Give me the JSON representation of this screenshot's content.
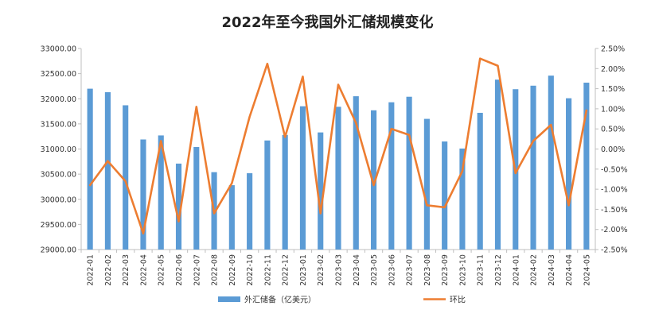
{
  "chart_data": {
    "type": "bar+line",
    "title": "2022年至今我国外汇储规模变化",
    "categories": [
      "2022-01",
      "2022-02",
      "2022-03",
      "2022-04",
      "2022-05",
      "2022-06",
      "2022-07",
      "2022-08",
      "2022-09",
      "2022-10",
      "2022-11",
      "2022-12",
      "2023-01",
      "2023-02",
      "2023-03",
      "2023-04",
      "2023-05",
      "2023-06",
      "2023-07",
      "2023-08",
      "2023-09",
      "2023-10",
      "2023-11",
      "2023-12",
      "2024-01",
      "2024-02",
      "2024-03",
      "2024-04",
      "2024-05"
    ],
    "series": [
      {
        "name": "外汇储备（亿美元）",
        "type": "bar",
        "axis": "left",
        "color": "#5B9BD5",
        "values": [
          32200,
          32130,
          31870,
          31190,
          31270,
          30710,
          31040,
          30540,
          30280,
          30520,
          31170,
          31280,
          31850,
          31330,
          31840,
          32050,
          31770,
          31930,
          32040,
          31600,
          31150,
          31010,
          31720,
          32380,
          32190,
          32260,
          32460,
          32010,
          32320
        ]
      },
      {
        "name": "环比",
        "type": "line",
        "axis": "right",
        "color": "#ED7D31",
        "values": [
          -0.9,
          -0.3,
          -0.8,
          -2.1,
          0.2,
          -1.8,
          1.05,
          -1.6,
          -0.85,
          0.8,
          2.12,
          0.3,
          1.8,
          -1.6,
          1.6,
          0.65,
          -0.9,
          0.5,
          0.35,
          -1.4,
          -1.45,
          -0.55,
          2.25,
          2.07,
          -0.6,
          0.2,
          0.6,
          -1.4,
          0.96
        ]
      }
    ],
    "y_left": {
      "min": 29000,
      "max": 33000,
      "step": 500,
      "ticks": [
        "29000.00",
        "29500.00",
        "30000.00",
        "30500.00",
        "31000.00",
        "31500.00",
        "32000.00",
        "32500.00",
        "33000.00"
      ]
    },
    "y_right": {
      "min": -2.5,
      "max": 2.5,
      "step": 0.5,
      "ticks": [
        "-2.50%",
        "-2.00%",
        "-1.50%",
        "-1.00%",
        "-0.50%",
        "0.00%",
        "0.50%",
        "1.00%",
        "1.50%",
        "2.00%",
        "2.50%"
      ]
    },
    "grid": false,
    "legend_position": "bottom"
  }
}
